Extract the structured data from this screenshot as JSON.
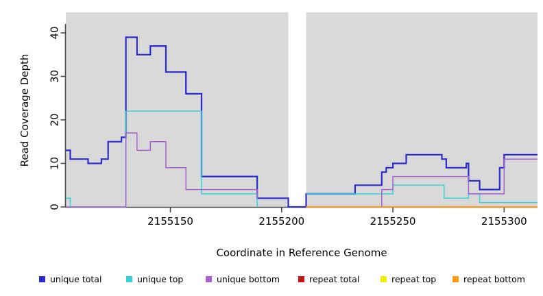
{
  "chart_data": {
    "type": "line",
    "subtype": "step-coverage",
    "title": "",
    "xlabel": "Coordinate in Reference Genome",
    "ylabel": "Read Coverage Depth",
    "xlim": [
      2155103,
      2155315
    ],
    "ylim": [
      0,
      44.7
    ],
    "x_ticks": [
      2155150,
      2155200,
      2155250,
      2155300
    ],
    "x_tick_labels": [
      "2155150",
      "2155200",
      "2155250",
      "2155300"
    ],
    "y_ticks": [
      0,
      10,
      20,
      30,
      40
    ],
    "y_tick_labels": [
      "0",
      "10",
      "20",
      "30",
      "40"
    ],
    "grid": false,
    "plot_background": "#D9D9D9",
    "axis_color": "#4D4D4D",
    "gap_band": {
      "x_start": 2155203,
      "x_end": 2155211,
      "color": "#FFFFFF"
    },
    "legend_position": "bottom",
    "series": [
      {
        "name": "unique total",
        "color": "#2B2BCF",
        "line_width": 2.2,
        "steps": [
          [
            2155103,
            13
          ],
          [
            2155105,
            11
          ],
          [
            2155113,
            10
          ],
          [
            2155119,
            11
          ],
          [
            2155122,
            15
          ],
          [
            2155128,
            16
          ],
          [
            2155130,
            39
          ],
          [
            2155135,
            35
          ],
          [
            2155141,
            37
          ],
          [
            2155148,
            31
          ],
          [
            2155157,
            26
          ],
          [
            2155164,
            7
          ],
          [
            2155189,
            2
          ],
          [
            2155203,
            0
          ],
          [
            2155211,
            3
          ],
          [
            2155233,
            5
          ],
          [
            2155245,
            8
          ],
          [
            2155247,
            9
          ],
          [
            2155250,
            10
          ],
          [
            2155256,
            12
          ],
          [
            2155272,
            11
          ],
          [
            2155274,
            9
          ],
          [
            2155283,
            10
          ],
          [
            2155284,
            6
          ],
          [
            2155289,
            4
          ],
          [
            2155298,
            9
          ],
          [
            2155300,
            12
          ],
          [
            2155315,
            12
          ]
        ]
      },
      {
        "name": "unique top",
        "color": "#35D2D8",
        "line_width": 1.5,
        "steps": [
          [
            2155103,
            2
          ],
          [
            2155105,
            0
          ],
          [
            2155130,
            22
          ],
          [
            2155164,
            3
          ],
          [
            2155189,
            0
          ],
          [
            2155203,
            null
          ],
          [
            2155211,
            3
          ],
          [
            2155250,
            5
          ],
          [
            2155273,
            2
          ],
          [
            2155284,
            3
          ],
          [
            2155289,
            1
          ],
          [
            2155315,
            1
          ]
        ]
      },
      {
        "name": "unique bottom",
        "color": "#A55FD0",
        "line_width": 1.5,
        "steps": [
          [
            2155103,
            0
          ],
          [
            2155130,
            17
          ],
          [
            2155135,
            13
          ],
          [
            2155141,
            15
          ],
          [
            2155148,
            9
          ],
          [
            2155157,
            4
          ],
          [
            2155189,
            2
          ],
          [
            2155203,
            null
          ],
          [
            2155211,
            0
          ],
          [
            2155245,
            4
          ],
          [
            2155250,
            7
          ],
          [
            2155284,
            3
          ],
          [
            2155300,
            11
          ],
          [
            2155315,
            11
          ]
        ]
      },
      {
        "name": "repeat total",
        "color": "#C41414",
        "line_width": 1.5,
        "steps": [
          [
            2155103,
            0
          ],
          [
            2155203,
            null
          ],
          [
            2155211,
            0
          ],
          [
            2155315,
            0
          ]
        ]
      },
      {
        "name": "repeat top",
        "color": "#EFEF00",
        "line_width": 1.5,
        "steps": [
          [
            2155103,
            0
          ],
          [
            2155203,
            null
          ],
          [
            2155211,
            0
          ],
          [
            2155315,
            0
          ]
        ]
      },
      {
        "name": "repeat bottom",
        "color": "#FF9912",
        "line_width": 2,
        "steps": [
          [
            2155103,
            0
          ],
          [
            2155203,
            null
          ],
          [
            2155211,
            0
          ],
          [
            2155315,
            0
          ]
        ]
      }
    ],
    "legend_swatch_x": [
      57,
      184,
      300,
      435,
      555,
      660
    ]
  }
}
